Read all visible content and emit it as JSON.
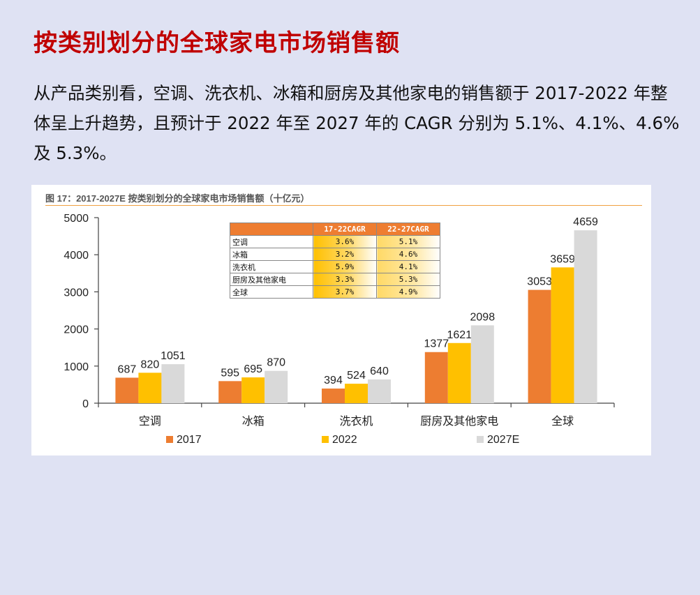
{
  "page": {
    "title": "按类别划分的全球家电市场销售额",
    "intro": "从产品类别看，空调、洗衣机、冰箱和厨房及其他家电的销售额于 2017-2022 年整体呈上升趋势，且预计于 2022 年至 2027 年的 CAGR 分别为 5.1%、4.1%、4.6% 及 5.3%。"
  },
  "figure": {
    "caption": "图 17：2017-2027E 按类别划分的全球家电市场销售额（十亿元）"
  },
  "chart_data": {
    "type": "bar",
    "title": "",
    "xlabel": "",
    "ylabel": "",
    "ylim": [
      0,
      5000
    ],
    "yticks": [
      "0",
      "1000",
      "2000",
      "3000",
      "4000",
      "5000"
    ],
    "categories": [
      "空调",
      "冰箱",
      "洗衣机",
      "厨房及其他家电",
      "全球"
    ],
    "series": [
      {
        "name": "2017",
        "color": "#ed7d31",
        "values": [
          687,
          595,
          394,
          1377,
          3053
        ]
      },
      {
        "name": "2022",
        "color": "#ffc000",
        "values": [
          820,
          695,
          524,
          1621,
          3659
        ]
      },
      {
        "name": "2027E",
        "color": "#d9d9d9",
        "values": [
          1051,
          870,
          640,
          2098,
          4659
        ]
      }
    ],
    "legend_position": "bottom",
    "grid": false,
    "cagr_table": {
      "headers": [
        "",
        "17-22CAGR",
        "22-27CAGR"
      ],
      "rows": [
        {
          "name": "空调",
          "c1": "3.6%",
          "c2": "5.1%"
        },
        {
          "name": "冰箱",
          "c1": "3.2%",
          "c2": "4.6%"
        },
        {
          "name": "洗衣机",
          "c1": "5.9%",
          "c2": "4.1%"
        },
        {
          "name": "厨房及其他家电",
          "c1": "3.3%",
          "c2": "5.3%"
        },
        {
          "name": "全球",
          "c1": "3.7%",
          "c2": "4.9%"
        }
      ]
    }
  }
}
